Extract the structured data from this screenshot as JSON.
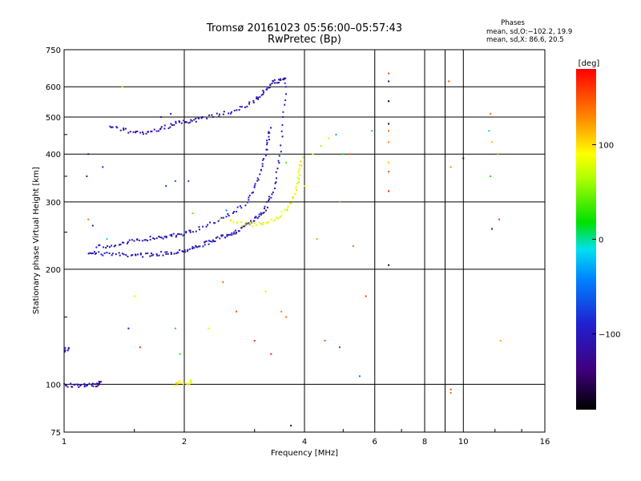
{
  "header": {
    "title_line1": "Tromsø 20161023 05:56:00–05:57:43",
    "title_line2": "RwPretec (Bp)"
  },
  "stats": {
    "heading": "Phases",
    "line_o": "mean, sd,O:−102.2, 19.9",
    "line_x": "mean, sd,X:  86.6, 20.5"
  },
  "colorbar": {
    "unit": "[deg]",
    "min": -180,
    "max": 180,
    "ticks": [
      {
        "value": 100,
        "label": "100"
      },
      {
        "value": 0,
        "label": "0"
      },
      {
        "value": -100,
        "label": "−100"
      }
    ]
  },
  "chart_data": {
    "type": "scatter",
    "xlabel": "Frequency [MHz]",
    "ylabel": "Stationary phase Virtual Height [km]",
    "xscale": "log",
    "yscale": "log",
    "xlim": [
      1,
      16
    ],
    "ylim": [
      75,
      750
    ],
    "x_ticks": [
      {
        "value": 1,
        "label": "1"
      },
      {
        "value": 2,
        "label": "2"
      },
      {
        "value": 4,
        "label": "4"
      },
      {
        "value": 6,
        "label": "6"
      },
      {
        "value": 8,
        "label": "8"
      },
      {
        "value": 10,
        "label": "10"
      },
      {
        "value": 16,
        "label": "16"
      }
    ],
    "x_grid": [
      2,
      4,
      6,
      8,
      9,
      10
    ],
    "y_ticks": [
      {
        "value": 75,
        "label": "75"
      },
      {
        "value": 100,
        "label": "100"
      },
      {
        "value": 200,
        "label": "200"
      },
      {
        "value": 300,
        "label": "300"
      },
      {
        "value": 400,
        "label": "400"
      },
      {
        "value": 500,
        "label": "500"
      },
      {
        "value": 600,
        "label": "600"
      },
      {
        "value": 750,
        "label": "750"
      }
    ],
    "y_grid": [
      100,
      200,
      300,
      400,
      500,
      600
    ],
    "grid": true,
    "trace_groups": [
      {
        "name": "O-mode F trace",
        "phase": -105,
        "x": [
          1.16,
          1.2,
          1.3,
          1.4,
          1.5,
          1.6,
          1.7,
          1.8,
          1.9,
          2.0,
          2.1,
          2.2,
          2.3,
          2.4,
          2.5,
          2.6,
          2.7,
          2.8,
          2.9,
          3.0,
          3.1,
          3.2,
          3.3,
          3.4,
          3.5,
          3.55,
          3.6
        ],
        "y": [
          222,
          220,
          219,
          218,
          218,
          218,
          219,
          220,
          222,
          224,
          227,
          231,
          235,
          239,
          243,
          247,
          251,
          257,
          263,
          270,
          278,
          290,
          310,
          345,
          410,
          520,
          640
        ]
      },
      {
        "name": "O-mode upper F trace",
        "phase": -100,
        "x": [
          1.2,
          1.3,
          1.4,
          1.5,
          1.6,
          1.7,
          1.8,
          1.9,
          2.0,
          2.1,
          2.3,
          2.5,
          2.7,
          2.9,
          3.0,
          3.1,
          3.2,
          3.25,
          3.3
        ],
        "y": [
          228,
          230,
          233,
          237,
          240,
          242,
          244,
          245,
          248,
          252,
          262,
          272,
          285,
          300,
          330,
          360,
          400,
          440,
          470
        ]
      },
      {
        "name": "O-mode upper echo",
        "phase": -110,
        "x": [
          1.3,
          1.4,
          1.5,
          1.6,
          1.7,
          1.8,
          1.9,
          2.0,
          2.1,
          2.2,
          2.4,
          2.6,
          2.8,
          3.0,
          3.1,
          3.2,
          3.3,
          3.4,
          3.5,
          3.6
        ],
        "y": [
          470,
          462,
          458,
          456,
          460,
          470,
          480,
          485,
          490,
          495,
          505,
          515,
          530,
          550,
          570,
          590,
          610,
          620,
          625,
          630
        ]
      },
      {
        "name": "X-mode F trace",
        "phase": 85,
        "x": [
          2.6,
          2.8,
          3.0,
          3.2,
          3.4,
          3.6,
          3.7,
          3.8,
          3.85,
          3.9,
          3.95
        ],
        "y": [
          268,
          262,
          262,
          265,
          272,
          285,
          300,
          320,
          340,
          365,
          395
        ]
      },
      {
        "name": "E-region echo",
        "phase": -110,
        "x": [
          1.0,
          1.05,
          1.1,
          1.15,
          1.2
        ],
        "y": [
          100,
          99,
          99,
          100,
          100
        ]
      },
      {
        "name": "E-region upper",
        "phase": -115,
        "x": [
          1.0,
          1.03
        ],
        "y": [
          123,
          124
        ]
      },
      {
        "name": "Es echo",
        "phase": -115,
        "x": [
          1.2,
          1.22,
          1.24
        ],
        "y": [
          99,
          100,
          101
        ]
      },
      {
        "name": "X-mode E echo",
        "phase": 90,
        "x": [
          1.9,
          1.95,
          2.05,
          2.1
        ],
        "y": [
          100,
          101,
          101,
          102
        ]
      }
    ],
    "scattered_echoes": [
      {
        "x": 1.75,
        "y": 500,
        "phase": -100
      },
      {
        "x": 1.85,
        "y": 510,
        "phase": -95
      },
      {
        "x": 1.8,
        "y": 330,
        "phase": -80
      },
      {
        "x": 1.9,
        "y": 340,
        "phase": -60
      },
      {
        "x": 2.05,
        "y": 340,
        "phase": -70
      },
      {
        "x": 1.15,
        "y": 400,
        "phase": -120
      },
      {
        "x": 1.14,
        "y": 350,
        "phase": -100
      },
      {
        "x": 1.18,
        "y": 260,
        "phase": -110
      },
      {
        "x": 1.25,
        "y": 370,
        "phase": -90
      },
      {
        "x": 1.4,
        "y": 600,
        "phase": 60
      },
      {
        "x": 1.15,
        "y": 270,
        "phase": 140
      },
      {
        "x": 1.5,
        "y": 170,
        "phase": 70
      },
      {
        "x": 1.45,
        "y": 140,
        "phase": -90
      },
      {
        "x": 1.55,
        "y": 125,
        "phase": 160
      },
      {
        "x": 1.9,
        "y": 140,
        "phase": -20
      },
      {
        "x": 1.95,
        "y": 120,
        "phase": 30
      },
      {
        "x": 2.1,
        "y": 280,
        "phase": 40
      },
      {
        "x": 2.3,
        "y": 140,
        "phase": 80
      },
      {
        "x": 2.5,
        "y": 185,
        "phase": 140
      },
      {
        "x": 2.7,
        "y": 155,
        "phase": 150
      },
      {
        "x": 3.0,
        "y": 130,
        "phase": 160
      },
      {
        "x": 3.2,
        "y": 175,
        "phase": 100
      },
      {
        "x": 3.5,
        "y": 155,
        "phase": 130
      },
      {
        "x": 3.6,
        "y": 150,
        "phase": 140
      },
      {
        "x": 3.7,
        "y": 78,
        "phase": -150
      },
      {
        "x": 3.3,
        "y": 120,
        "phase": 170
      },
      {
        "x": 4.0,
        "y": 330,
        "phase": 100
      },
      {
        "x": 4.2,
        "y": 400,
        "phase": 90
      },
      {
        "x": 4.4,
        "y": 420,
        "phase": 60
      },
      {
        "x": 4.6,
        "y": 440,
        "phase": 100
      },
      {
        "x": 4.8,
        "y": 450,
        "phase": -30
      },
      {
        "x": 5.0,
        "y": 400,
        "phase": 20
      },
      {
        "x": 5.2,
        "y": 400,
        "phase": 150
      },
      {
        "x": 4.9,
        "y": 300,
        "phase": 130
      },
      {
        "x": 5.3,
        "y": 230,
        "phase": 140
      },
      {
        "x": 4.3,
        "y": 240,
        "phase": 120
      },
      {
        "x": 4.5,
        "y": 130,
        "phase": 150
      },
      {
        "x": 4.9,
        "y": 125,
        "phase": -60
      },
      {
        "x": 5.5,
        "y": 105,
        "phase": -40
      },
      {
        "x": 5.7,
        "y": 170,
        "phase": 160
      },
      {
        "x": 5.9,
        "y": 460,
        "phase": 0
      },
      {
        "x": 6.5,
        "y": 650,
        "phase": 150
      },
      {
        "x": 6.5,
        "y": 620,
        "phase": -140
      },
      {
        "x": 6.5,
        "y": 550,
        "phase": -170
      },
      {
        "x": 6.5,
        "y": 480,
        "phase": -160
      },
      {
        "x": 6.5,
        "y": 460,
        "phase": 140
      },
      {
        "x": 6.5,
        "y": 430,
        "phase": 130
      },
      {
        "x": 6.5,
        "y": 380,
        "phase": 110
      },
      {
        "x": 6.5,
        "y": 360,
        "phase": 150
      },
      {
        "x": 6.5,
        "y": 320,
        "phase": 170
      },
      {
        "x": 6.5,
        "y": 205,
        "phase": -170
      },
      {
        "x": 9.2,
        "y": 620,
        "phase": 150
      },
      {
        "x": 9.3,
        "y": 370,
        "phase": 130
      },
      {
        "x": 9.3,
        "y": 97,
        "phase": 160
      },
      {
        "x": 9.3,
        "y": 95,
        "phase": 140
      },
      {
        "x": 10.0,
        "y": 390,
        "phase": -150
      },
      {
        "x": 11.7,
        "y": 510,
        "phase": 140
      },
      {
        "x": 11.6,
        "y": 460,
        "phase": 0
      },
      {
        "x": 11.8,
        "y": 430,
        "phase": 110
      },
      {
        "x": 11.7,
        "y": 350,
        "phase": 20
      },
      {
        "x": 11.8,
        "y": 255,
        "phase": -120
      },
      {
        "x": 12.3,
        "y": 270,
        "phase": 160
      },
      {
        "x": 12.4,
        "y": 130,
        "phase": 120
      },
      {
        "x": 12.2,
        "y": 400,
        "phase": 40
      },
      {
        "x": 3.5,
        "y": 400,
        "phase": 20
      },
      {
        "x": 3.6,
        "y": 380,
        "phase": 40
      },
      {
        "x": 2.55,
        "y": 285,
        "phase": -40
      },
      {
        "x": 2.45,
        "y": 270,
        "phase": 60
      },
      {
        "x": 1.28,
        "y": 240,
        "phase": -10
      }
    ]
  }
}
